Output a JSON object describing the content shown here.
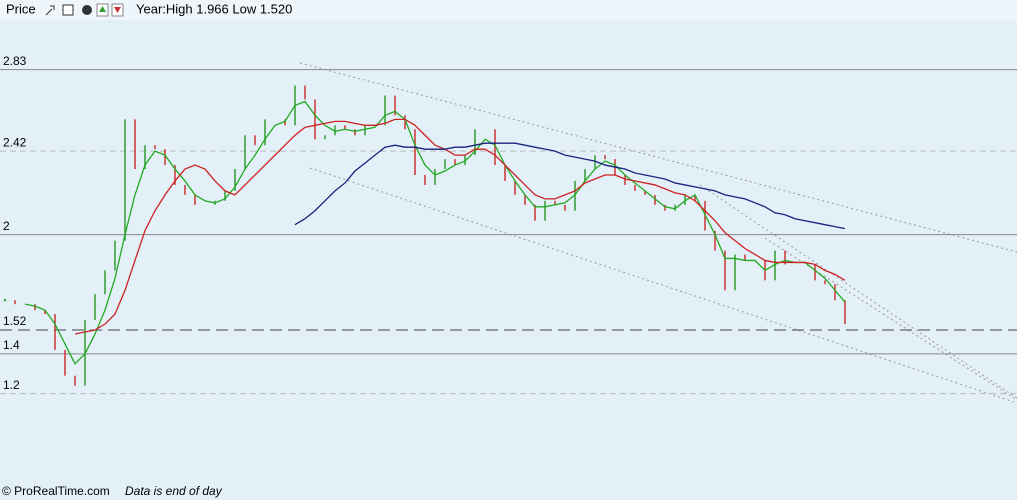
{
  "header": {
    "label": "Price",
    "stats": "Year:High 1.966 Low 1.520"
  },
  "footer": {
    "source": "© ProRealTime.com",
    "note": "Data is end of day"
  },
  "chart_data": {
    "type": "line",
    "ylim": [
      0.74,
      3.08
    ],
    "yticks": [
      2.83,
      2.42,
      2,
      1.52,
      1.4,
      1.2
    ],
    "grid_styles": [
      "solid",
      "dashed",
      "solid",
      "longdash",
      "solid",
      "dashed"
    ],
    "up_color": "#2e9e2e",
    "down_color": "#cc3333",
    "price": [
      1.67,
      1.65,
      1.65,
      1.62,
      1.6,
      1.42,
      1.29,
      1.24,
      1.57,
      1.7,
      1.82,
      1.97,
      2.58,
      2.33,
      2.45,
      2.43,
      2.35,
      2.25,
      2.2,
      2.15,
      2.15,
      2.17,
      2.22,
      2.33,
      2.5,
      2.45,
      2.58,
      2.58,
      2.55,
      2.75,
      2.68,
      2.48,
      2.5,
      2.55,
      2.53,
      2.5,
      2.55,
      2.55,
      2.7,
      2.6,
      2.53,
      2.3,
      2.25,
      2.33,
      2.38,
      2.35,
      2.4,
      2.53,
      2.53,
      2.35,
      2.27,
      2.2,
      2.15,
      2.07,
      2.17,
      2.15,
      2.12,
      2.27,
      2.33,
      2.4,
      2.38,
      2.3,
      2.25,
      2.22,
      2.2,
      2.15,
      2.12,
      2.15,
      2.2,
      2.17,
      2.02,
      1.92,
      1.72,
      1.9,
      1.87,
      1.87,
      1.77,
      1.92,
      1.85,
      1.85,
      1.85,
      1.77,
      1.75,
      1.67,
      1.55
    ],
    "series": [
      {
        "color": "#22aa22",
        "values": [
          null,
          null,
          1.65,
          1.64,
          1.62,
          1.55,
          1.45,
          1.35,
          1.4,
          1.5,
          1.62,
          1.78,
          2.0,
          2.2,
          2.35,
          2.42,
          2.4,
          2.33,
          2.27,
          2.2,
          2.17,
          2.16,
          2.18,
          2.24,
          2.33,
          2.4,
          2.48,
          2.55,
          2.57,
          2.65,
          2.67,
          2.6,
          2.55,
          2.52,
          2.53,
          2.52,
          2.53,
          2.54,
          2.6,
          2.62,
          2.58,
          2.45,
          2.35,
          2.3,
          2.32,
          2.35,
          2.37,
          2.42,
          2.48,
          2.45,
          2.35,
          2.27,
          2.2,
          2.14,
          2.14,
          2.15,
          2.16,
          2.2,
          2.27,
          2.33,
          2.37,
          2.35,
          2.3,
          2.26,
          2.22,
          2.18,
          2.14,
          2.13,
          2.17,
          2.2,
          2.1,
          2.0,
          1.88,
          1.88,
          1.87,
          1.87,
          1.82,
          1.85,
          1.87,
          1.86,
          1.86,
          1.82,
          1.78,
          1.72,
          1.66
        ]
      },
      {
        "color": "#cc2222",
        "values": [
          null,
          null,
          null,
          null,
          null,
          null,
          null,
          1.5,
          1.51,
          1.52,
          1.55,
          1.6,
          1.72,
          1.87,
          2.02,
          2.12,
          2.2,
          2.27,
          2.33,
          2.35,
          2.33,
          2.27,
          2.22,
          2.2,
          2.25,
          2.3,
          2.35,
          2.4,
          2.45,
          2.5,
          2.54,
          2.55,
          2.56,
          2.57,
          2.57,
          2.56,
          2.55,
          2.55,
          2.56,
          2.58,
          2.58,
          2.55,
          2.5,
          2.45,
          2.43,
          2.4,
          2.4,
          2.43,
          2.43,
          2.4,
          2.35,
          2.3,
          2.25,
          2.2,
          2.18,
          2.18,
          2.2,
          2.22,
          2.26,
          2.28,
          2.3,
          2.3,
          2.28,
          2.27,
          2.26,
          2.25,
          2.23,
          2.21,
          2.2,
          2.17,
          2.12,
          2.07,
          2.01,
          1.97,
          1.93,
          1.9,
          1.87,
          1.86,
          1.86,
          1.86,
          1.86,
          1.85,
          1.82,
          1.8,
          1.77
        ]
      },
      {
        "color": "#1a237e",
        "values": [
          null,
          null,
          null,
          null,
          null,
          null,
          null,
          null,
          null,
          null,
          null,
          null,
          null,
          null,
          null,
          null,
          null,
          null,
          null,
          null,
          null,
          null,
          null,
          null,
          null,
          null,
          null,
          null,
          null,
          2.05,
          2.08,
          2.12,
          2.17,
          2.22,
          2.26,
          2.32,
          2.36,
          2.4,
          2.44,
          2.45,
          2.44,
          2.44,
          2.43,
          2.43,
          2.43,
          2.44,
          2.44,
          2.45,
          2.46,
          2.46,
          2.46,
          2.46,
          2.45,
          2.44,
          2.43,
          2.42,
          2.4,
          2.39,
          2.38,
          2.37,
          2.35,
          2.34,
          2.33,
          2.31,
          2.3,
          2.29,
          2.28,
          2.26,
          2.25,
          2.24,
          2.23,
          2.22,
          2.2,
          2.19,
          2.18,
          2.16,
          2.14,
          2.11,
          2.1,
          2.08,
          2.07,
          2.06,
          2.05,
          2.04,
          2.03
        ]
      }
    ]
  }
}
